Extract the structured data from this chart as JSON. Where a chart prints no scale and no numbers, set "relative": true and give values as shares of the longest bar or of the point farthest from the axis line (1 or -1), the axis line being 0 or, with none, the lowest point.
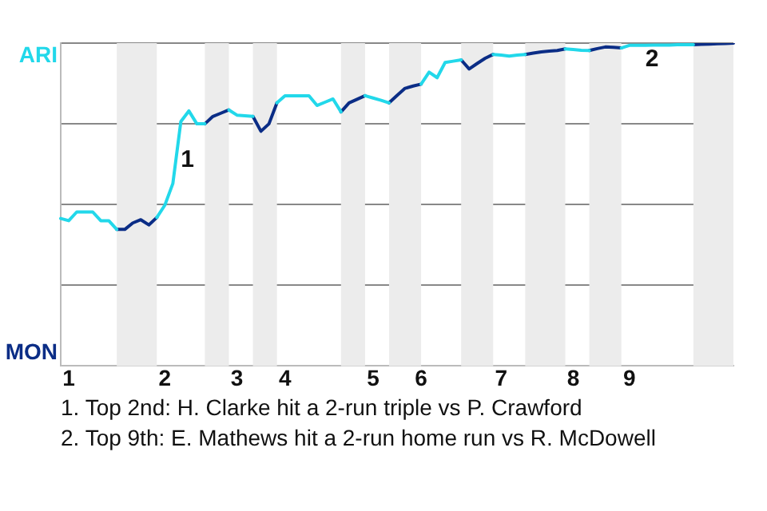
{
  "chart_data": {
    "type": "line",
    "categories": [
      null,
      "1",
      null,
      null,
      null,
      null,
      null,
      null,
      null,
      null,
      null,
      null,
      null,
      "2",
      null,
      null,
      null,
      null,
      null,
      null,
      null,
      null,
      "3",
      null,
      null,
      null,
      null,
      null,
      "4",
      null,
      null,
      null,
      null,
      null,
      null,
      null,
      null,
      null,
      null,
      "5",
      null,
      null,
      null,
      null,
      null,
      "6",
      null,
      null,
      null,
      null,
      null,
      null,
      null,
      null,
      null,
      "7",
      null,
      null,
      null,
      null,
      null,
      null,
      null,
      null,
      "8",
      null,
      null,
      null,
      null,
      null,
      null,
      "9",
      null,
      null,
      null,
      null,
      null,
      null,
      null,
      null,
      null,
      null,
      null,
      null,
      null
    ],
    "relative": true,
    "series": [
      {
        "name": "ARI",
        "color": "#22d8ea",
        "values": [
          0.457,
          0.45,
          0.477,
          0.477,
          0.477,
          0.45,
          0.45,
          0.423,
          null,
          null,
          null,
          null,
          0.46,
          0.498,
          0.565,
          0.757,
          0.79,
          0.75,
          0.75,
          null,
          null,
          0.793,
          0.777,
          0.775,
          0.773,
          null,
          null,
          0.815,
          0.837,
          0.837,
          0.837,
          0.837,
          0.807,
          0.817,
          0.827,
          0.787,
          null,
          null,
          0.837,
          0.83,
          0.823,
          0.815,
          null,
          null,
          null,
          0.873,
          0.91,
          0.893,
          0.94,
          0.944,
          0.948,
          null,
          null,
          null,
          0.965,
          0.963,
          0.96,
          0.963,
          0.965,
          null,
          null,
          null,
          null,
          0.982,
          0.98,
          0.978,
          0.977,
          null,
          null,
          null,
          0.985,
          0.993,
          0.993,
          0.993,
          0.994,
          0.994,
          0.994,
          0.995,
          0.995,
          0.995,
          null,
          null,
          null,
          null,
          null
        ]
      },
      {
        "name": "MON",
        "color": "#0b2d86",
        "values": [
          null,
          null,
          null,
          null,
          null,
          null,
          null,
          0.423,
          0.423,
          0.443,
          0.453,
          0.437,
          0.46,
          null,
          null,
          null,
          null,
          null,
          0.75,
          0.773,
          0.783,
          0.793,
          null,
          null,
          0.773,
          0.727,
          0.75,
          0.815,
          null,
          null,
          null,
          null,
          null,
          null,
          null,
          0.787,
          0.815,
          0.826,
          0.837,
          null,
          null,
          0.815,
          0.838,
          0.86,
          0.867,
          0.873,
          null,
          null,
          null,
          null,
          0.948,
          0.92,
          0.937,
          0.953,
          0.965,
          null,
          null,
          null,
          0.965,
          0.969,
          0.973,
          0.975,
          0.977,
          0.982,
          null,
          null,
          0.977,
          0.983,
          0.988,
          0.987,
          0.985,
          null,
          null,
          null,
          null,
          null,
          null,
          null,
          null,
          0.995,
          0.996,
          0.997,
          0.998,
          0.999,
          1
        ]
      }
    ],
    "grid": "y",
    "legend": false,
    "marker": "none",
    "line_style": "solid",
    "annotations": [
      {
        "text": "1",
        "x": "2",
        "y": 0.498
      },
      {
        "text": "2",
        "x": "9",
        "y": 0.993
      },
      "1. Top 2nd: H. Clarke hit a 2-run triple vs P. Crawford",
      "2. Top 9th: E. Mathews hit a 2-run home run vs R. McDowell"
    ]
  }
}
